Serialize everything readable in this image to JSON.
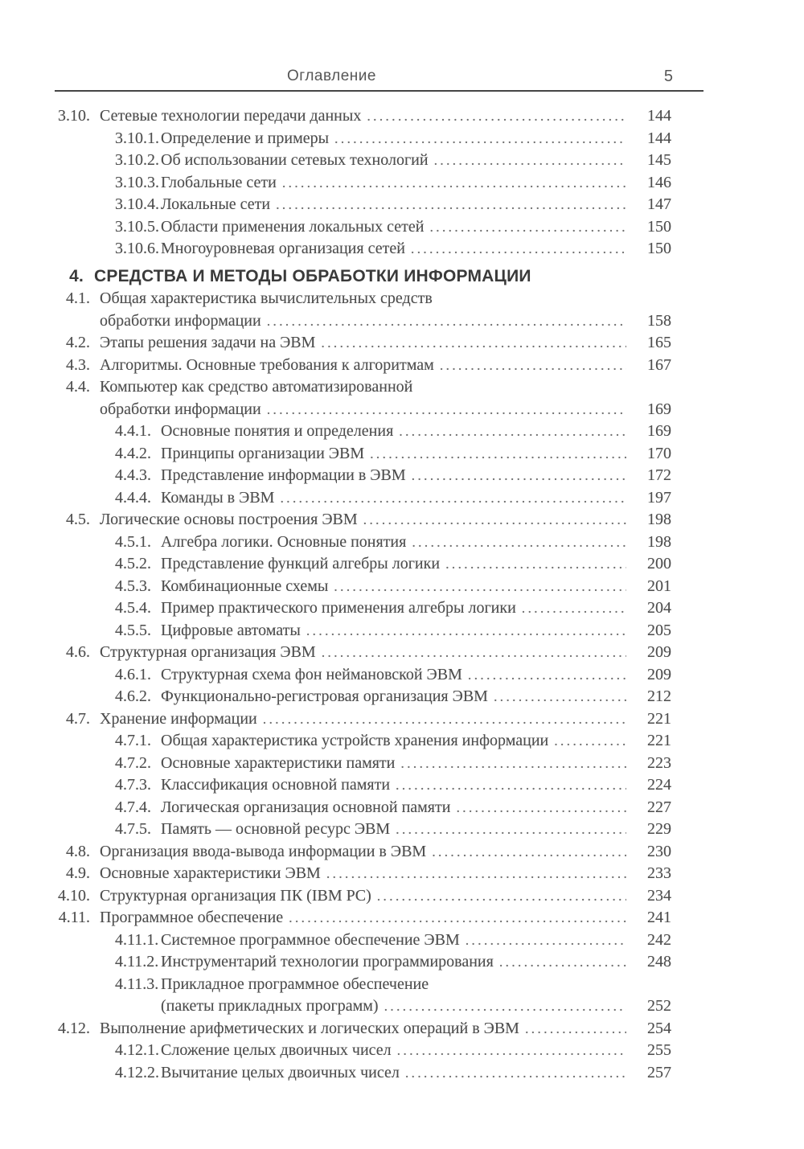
{
  "header": {
    "title": "Оглавление",
    "page_number": "5"
  },
  "toc": {
    "entries": [
      {
        "level": 1,
        "num": "3.10.",
        "title": "Сетевые технологии передачи данных",
        "page": "144"
      },
      {
        "level": 2,
        "num": "3.10.1.",
        "title": "Определение и примеры",
        "page": "144"
      },
      {
        "level": 2,
        "num": "3.10.2.",
        "title": "Об использовании сетевых технологий",
        "page": "145"
      },
      {
        "level": 2,
        "num": "3.10.3.",
        "title": "Глобальные сети",
        "page": "146"
      },
      {
        "level": 2,
        "num": "3.10.4.",
        "title": "Локальные сети",
        "page": "147"
      },
      {
        "level": 2,
        "num": "3.10.5.",
        "title": "Области применения локальных сетей",
        "page": "150"
      },
      {
        "level": 2,
        "num": "3.10.6.",
        "title": "Многоуровневая организация сетей",
        "page": "150"
      },
      {
        "level": "section",
        "num": "4.",
        "title": "СРЕДСТВА И МЕТОДЫ ОБРАБОТКИ ИНФОРМАЦИИ"
      },
      {
        "level": 1,
        "num": "4.1.",
        "title": "Общая характеристика вычислительных средств",
        "title2": "обработки информации",
        "page": "158"
      },
      {
        "level": 1,
        "num": "4.2.",
        "title": "Этапы решения задачи на ЭВМ",
        "page": "165"
      },
      {
        "level": 1,
        "num": "4.3.",
        "title": "Алгоритмы. Основные требования к алгоритмам",
        "page": "167"
      },
      {
        "level": 1,
        "num": "4.4.",
        "title": "Компьютер как средство автоматизированной",
        "title2": "обработки информации",
        "page": "169"
      },
      {
        "level": 2,
        "num": "4.4.1.",
        "title": "Основные понятия и определения",
        "page": "169"
      },
      {
        "level": 2,
        "num": "4.4.2.",
        "title": "Принципы организации ЭВМ",
        "page": "170"
      },
      {
        "level": 2,
        "num": "4.4.3.",
        "title": "Представление информации в ЭВМ",
        "page": "172"
      },
      {
        "level": 2,
        "num": "4.4.4.",
        "title": "Команды в ЭВМ",
        "page": "197"
      },
      {
        "level": 1,
        "num": "4.5.",
        "title": "Логические основы построения ЭВМ",
        "page": "198"
      },
      {
        "level": 2,
        "num": "4.5.1.",
        "title": "Алгебра логики. Основные понятия",
        "page": "198"
      },
      {
        "level": 2,
        "num": "4.5.2.",
        "title": "Представление функций алгебры логики",
        "page": "200"
      },
      {
        "level": 2,
        "num": "4.5.3.",
        "title": "Комбинационные схемы",
        "page": "201"
      },
      {
        "level": 2,
        "num": "4.5.4.",
        "title": "Пример практического применения алгебры логики",
        "page": "204"
      },
      {
        "level": 2,
        "num": "4.5.5.",
        "title": "Цифровые автоматы",
        "page": "205"
      },
      {
        "level": 1,
        "num": "4.6.",
        "title": "Структурная организация ЭВМ",
        "page": "209"
      },
      {
        "level": 2,
        "num": "4.6.1.",
        "title": "Структурная схема фон неймановской ЭВМ",
        "page": "209"
      },
      {
        "level": 2,
        "num": "4.6.2.",
        "title": "Функционально-регистровая организация ЭВМ",
        "page": "212"
      },
      {
        "level": 1,
        "num": "4.7.",
        "title": "Хранение информации",
        "page": "221"
      },
      {
        "level": 2,
        "num": "4.7.1.",
        "title": "Общая характеристика устройств хранения информации",
        "page": "221"
      },
      {
        "level": 2,
        "num": "4.7.2.",
        "title": "Основные характеристики памяти",
        "page": "223"
      },
      {
        "level": 2,
        "num": "4.7.3.",
        "title": "Классификация основной памяти",
        "page": "224"
      },
      {
        "level": 2,
        "num": "4.7.4.",
        "title": "Логическая организация основной памяти",
        "page": "227"
      },
      {
        "level": 2,
        "num": "4.7.5.",
        "title": "Память — основной ресурс ЭВМ",
        "page": "229"
      },
      {
        "level": 1,
        "num": "4.8.",
        "title": "Организация ввода-вывода информации в ЭВМ",
        "page": "230"
      },
      {
        "level": 1,
        "num": "4.9.",
        "title": "Основные характеристики ЭВМ",
        "page": "233"
      },
      {
        "level": 1,
        "num": "4.10.",
        "title": "Структурная организация ПК (IBM PC)",
        "page": "234"
      },
      {
        "level": 1,
        "num": "4.11.",
        "title": "Программное обеспечение",
        "page": "241"
      },
      {
        "level": 2,
        "num": "4.11.1.",
        "title": "Системное программное обеспечение ЭВМ",
        "page": "242"
      },
      {
        "level": 2,
        "num": "4.11.2.",
        "title": "Инструментарий технологии программирования",
        "page": "248"
      },
      {
        "level": 2,
        "num": "4.11.3.",
        "title": "Прикладное программное обеспечение",
        "title2": "(пакеты прикладных программ)",
        "page": "252"
      },
      {
        "level": 1,
        "num": "4.12.",
        "title": "Выполнение арифметических и логических операций в ЭВМ",
        "page": "254"
      },
      {
        "level": 2,
        "num": "4.12.1.",
        "title": "Сложение целых двоичных чисел",
        "page": "255"
      },
      {
        "level": 2,
        "num": "4.12.2.",
        "title": "Вычитание целых двоичных чисел",
        "page": "257"
      }
    ]
  },
  "misc": {
    "dot_leader": "....................................................................................................................................................................."
  }
}
